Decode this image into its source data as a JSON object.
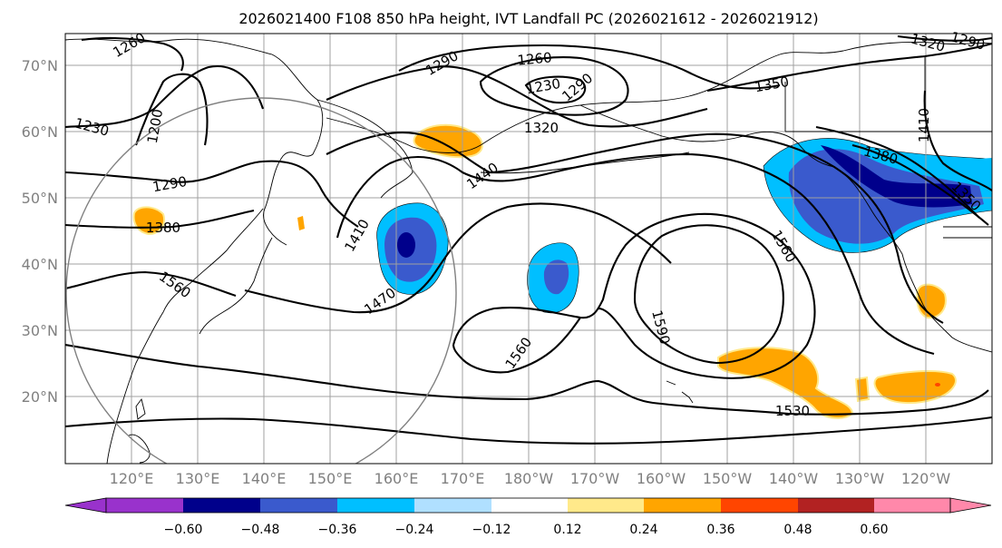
{
  "title": "2026021400 F108 850 hPa height, IVT Landfall PC (2026021612 - 2026021912)",
  "map": {
    "lat_labels": [
      "70°N",
      "60°N",
      "50°N",
      "40°N",
      "30°N",
      "20°N"
    ],
    "lon_labels": [
      "120°E",
      "130°E",
      "140°E",
      "150°E",
      "160°E",
      "170°E",
      "180°W",
      "170°W",
      "160°W",
      "150°W",
      "140°W",
      "130°W",
      "120°W"
    ],
    "contour_labels": [
      "1260",
      "1290",
      "1230",
      "1200",
      "1290",
      "1380",
      "1560",
      "1260",
      "1290",
      "1230",
      "1320",
      "1350",
      "1320",
      "1290",
      "1410",
      "1380",
      "1350",
      "1440",
      "1410",
      "1470",
      "1560",
      "1560",
      "1590",
      "1530"
    ],
    "colors": {
      "contour": "#000000",
      "grid": "#a0a0a0",
      "border": "#000000"
    }
  },
  "colorbar": {
    "ticks": [
      "−0.60",
      "−0.48",
      "−0.36",
      "−0.24",
      "−0.12",
      "0.12",
      "0.24",
      "0.36",
      "0.48",
      "0.60"
    ],
    "colors": [
      "#9932cc",
      "#00008b",
      "#3a5acd",
      "#00bfff",
      "#b0e0ff",
      "#ffffff",
      "#ffe98a",
      "#ffa500",
      "#ff4500",
      "#b22222",
      "#ff88aa"
    ]
  }
}
